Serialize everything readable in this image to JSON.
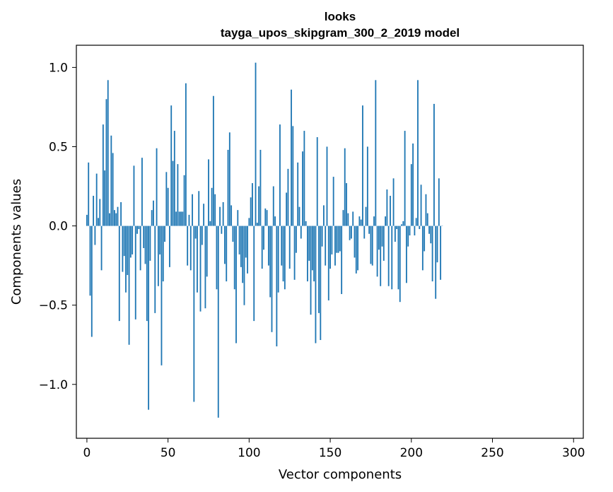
{
  "chart_data": {
    "type": "bar",
    "title": "looks",
    "subtitle": "tayga_upos_skipgram_300_2_2019 model",
    "xlabel": "Vector components",
    "ylabel": "Components values",
    "xlim": [
      -6.5,
      306
    ],
    "ylim": [
      -1.34,
      1.14
    ],
    "xticks": [
      0,
      50,
      100,
      150,
      200,
      250,
      300
    ],
    "xtick_labels": [
      "0",
      "50",
      "100",
      "150",
      "200",
      "250",
      "300"
    ],
    "yticks": [
      -1.0,
      -0.5,
      0.0,
      0.5,
      1.0
    ],
    "ytick_labels": [
      "−1.0",
      "−0.5",
      "0.0",
      "0.5",
      "1.0"
    ],
    "grid": false,
    "bar_color": "#1f77b4",
    "values": [
      0.07,
      0.4,
      -0.44,
      -0.7,
      0.19,
      -0.12,
      0.33,
      0.05,
      0.17,
      -0.28,
      0.64,
      0.35,
      0.8,
      0.92,
      0.08,
      0.57,
      0.46,
      0.1,
      0.08,
      0.12,
      -0.6,
      0.15,
      -0.29,
      -0.19,
      -0.42,
      -0.31,
      -0.75,
      -0.2,
      -0.18,
      0.38,
      -0.59,
      -0.05,
      -0.02,
      -0.28,
      0.43,
      -0.14,
      -0.24,
      -0.6,
      -1.16,
      -0.22,
      0.1,
      0.16,
      -0.55,
      0.49,
      -0.38,
      -0.18,
      -0.88,
      -0.35,
      -0.1,
      0.34,
      0.24,
      -0.26,
      0.76,
      0.41,
      0.6,
      0.09,
      0.39,
      0.09,
      0.09,
      0.09,
      0.32,
      0.9,
      -0.25,
      0.07,
      -0.28,
      0.2,
      -1.11,
      -0.08,
      -0.42,
      0.22,
      -0.54,
      -0.12,
      0.14,
      -0.52,
      -0.32,
      0.42,
      0.03,
      0.24,
      0.82,
      0.2,
      -0.4,
      -1.21,
      0.12,
      -0.05,
      0.15,
      -0.24,
      -0.35,
      0.48,
      0.59,
      0.13,
      -0.1,
      -0.4,
      -0.74,
      0.1,
      -0.18,
      -0.26,
      -0.36,
      -0.5,
      -0.2,
      -0.3,
      0.05,
      0.18,
      0.27,
      -0.6,
      1.03,
      0.02,
      0.25,
      0.48,
      -0.27,
      -0.15,
      0.11,
      0.1,
      -0.25,
      -0.45,
      -0.67,
      0.25,
      0.06,
      -0.76,
      -0.42,
      0.64,
      -0.25,
      -0.35,
      -0.4,
      0.21,
      0.36,
      -0.27,
      0.86,
      0.63,
      -0.34,
      -0.17,
      0.4,
      0.12,
      -0.08,
      0.47,
      0.6,
      0.03,
      -0.35,
      -0.22,
      -0.56,
      -0.28,
      -0.35,
      -0.74,
      0.56,
      -0.55,
      -0.72,
      -0.13,
      0.13,
      -0.25,
      0.5,
      -0.47,
      -0.27,
      -0.18,
      0.31,
      -0.25,
      -0.17,
      -0.17,
      -0.16,
      -0.43,
      0.1,
      0.49,
      0.27,
      0.08,
      -0.09,
      -0.08,
      0.09,
      -0.2,
      -0.3,
      -0.28,
      0.06,
      0.04,
      0.76,
      -0.08,
      0.12,
      0.5,
      -0.05,
      -0.24,
      -0.25,
      0.06,
      0.92,
      -0.32,
      -0.15,
      -0.38,
      -0.13,
      -0.22,
      0.06,
      0.23,
      -0.38,
      0.19,
      -0.4,
      0.3,
      -0.1,
      -0.02,
      -0.4,
      -0.48,
      0.01,
      0.03,
      0.6,
      -0.36,
      -0.13,
      -0.06,
      0.39,
      0.52,
      -0.06,
      0.05,
      0.92,
      -0.02,
      0.26,
      -0.28,
      -0.16,
      0.2,
      0.08,
      -0.05,
      -0.11,
      -0.35,
      0.77,
      -0.46,
      -0.23,
      0.3,
      -0.34,
      0.0
    ]
  }
}
